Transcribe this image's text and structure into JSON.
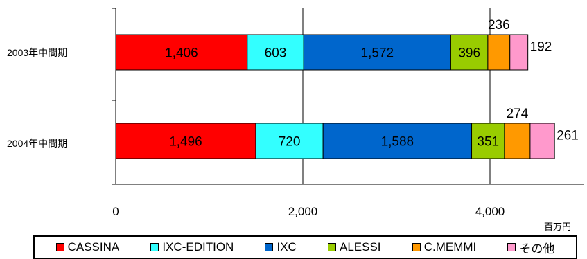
{
  "chart_data": {
    "type": "bar",
    "orientation": "horizontal",
    "stacked": true,
    "categories": [
      "2003年中間期",
      "2004年中間期"
    ],
    "series": [
      {
        "name": "CASSINA",
        "values": [
          1406,
          1496
        ],
        "color": "#ff0000"
      },
      {
        "name": "IXC-EDITION",
        "values": [
          603,
          720
        ],
        "color": "#33ffff"
      },
      {
        "name": "IXC",
        "values": [
          1572,
          1588
        ],
        "color": "#0066cc"
      },
      {
        "name": "ALESSI",
        "values": [
          396,
          351
        ],
        "color": "#99cc00"
      },
      {
        "name": "C.MEMMI",
        "values": [
          236,
          274
        ],
        "color": "#ff9900"
      },
      {
        "name": "その他",
        "values": [
          192,
          261
        ],
        "color": "#ff99cc"
      }
    ],
    "data_labels": [
      [
        "1,406",
        "603",
        "1,572",
        "396",
        "236",
        "192"
      ],
      [
        "1,496",
        "720",
        "1,588",
        "351",
        "274",
        "261"
      ]
    ],
    "xlim": [
      0,
      5000
    ],
    "xticks": [
      0,
      2000,
      4000
    ],
    "xtick_labels": [
      "0",
      "2,000",
      "4,000"
    ],
    "unit": "百万円",
    "grid": true,
    "legend_position": "bottom"
  }
}
